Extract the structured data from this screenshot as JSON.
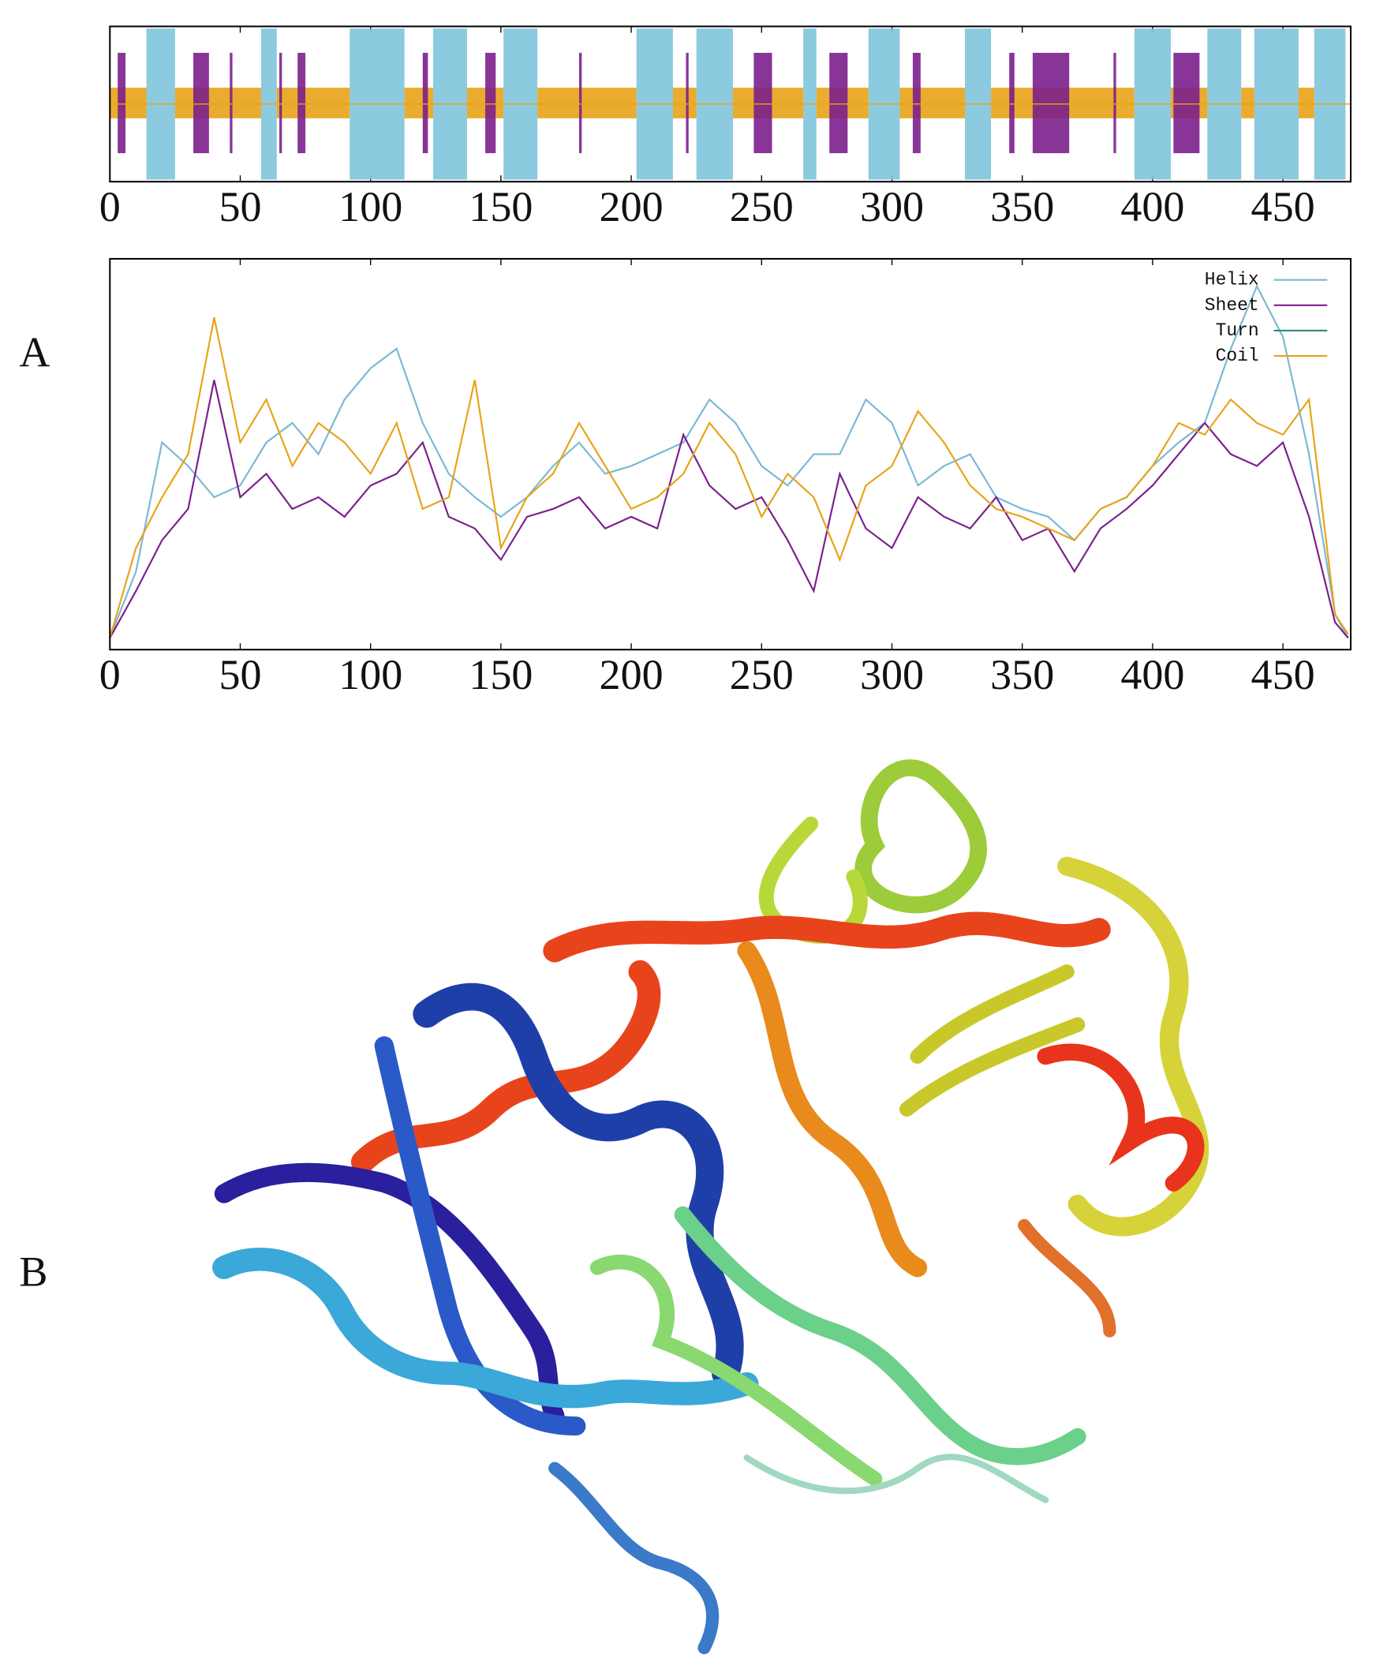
{
  "panel_labels": {
    "a": "A",
    "b": "B"
  },
  "chart_data": [
    {
      "type": "track",
      "xlim": [
        0,
        476
      ],
      "xticks": [
        0,
        50,
        100,
        150,
        200,
        250,
        300,
        350,
        400,
        450
      ],
      "series": [
        {
          "color": "#7ec4dc",
          "segments": [
            [
              14,
              25
            ],
            [
              58,
              64
            ],
            [
              92,
              113
            ],
            [
              124,
              137
            ],
            [
              151,
              164
            ],
            [
              202,
              216
            ],
            [
              225,
              239
            ],
            [
              266,
              271
            ],
            [
              291,
              303
            ],
            [
              328,
              338
            ],
            [
              393,
              407
            ],
            [
              421,
              434
            ],
            [
              439,
              456
            ],
            [
              462,
              474
            ]
          ]
        },
        {
          "color": "#e8a317",
          "segments": [
            [
              0,
              14
            ],
            [
              25,
              58
            ],
            [
              64,
              92
            ],
            [
              113,
              124
            ],
            [
              137,
              151
            ],
            [
              164,
              202
            ],
            [
              216,
              225
            ],
            [
              239,
              266
            ],
            [
              271,
              291
            ],
            [
              303,
              328
            ],
            [
              338,
              393
            ],
            [
              407,
              421
            ],
            [
              434,
              439
            ],
            [
              456,
              462
            ]
          ]
        },
        {
          "color": "#7b1f8c",
          "segments": [
            [
              3,
              6
            ],
            [
              32,
              38
            ],
            [
              46,
              47
            ],
            [
              65,
              66
            ],
            [
              72,
              75
            ],
            [
              120,
              122
            ],
            [
              144,
              148
            ],
            [
              180,
              181
            ],
            [
              221,
              222
            ],
            [
              247,
              254
            ],
            [
              276,
              283
            ],
            [
              308,
              311
            ],
            [
              345,
              347
            ],
            [
              354,
              368
            ],
            [
              385,
              386
            ],
            [
              408,
              418
            ]
          ]
        }
      ]
    },
    {
      "type": "line",
      "xlim": [
        0,
        476
      ],
      "ylim": [
        0,
        1
      ],
      "xticks": [
        0,
        50,
        100,
        150,
        200,
        250,
        300,
        350,
        400,
        450
      ],
      "legend": "top-right",
      "x": [
        0,
        10,
        20,
        30,
        40,
        50,
        60,
        70,
        80,
        90,
        100,
        110,
        120,
        130,
        140,
        150,
        160,
        170,
        180,
        190,
        200,
        210,
        220,
        230,
        240,
        250,
        260,
        270,
        280,
        290,
        300,
        310,
        320,
        330,
        340,
        350,
        360,
        370,
        380,
        390,
        400,
        410,
        420,
        430,
        440,
        450,
        460,
        470,
        475
      ],
      "series": [
        {
          "name": "Helix",
          "color": "#7ab8d4",
          "values": [
            0.03,
            0.2,
            0.53,
            0.47,
            0.39,
            0.42,
            0.53,
            0.58,
            0.5,
            0.64,
            0.72,
            0.77,
            0.58,
            0.45,
            0.39,
            0.34,
            0.39,
            0.47,
            0.53,
            0.45,
            0.47,
            0.5,
            0.53,
            0.64,
            0.58,
            0.47,
            0.42,
            0.5,
            0.5,
            0.64,
            0.58,
            0.42,
            0.47,
            0.5,
            0.39,
            0.36,
            0.34,
            0.28,
            0.36,
            0.39,
            0.47,
            0.53,
            0.58,
            0.77,
            0.93,
            0.8,
            0.5,
            0.09,
            0.03
          ]
        },
        {
          "name": "Sheet",
          "color": "#7b1f8c",
          "values": [
            0.03,
            0.15,
            0.28,
            0.36,
            0.69,
            0.39,
            0.45,
            0.36,
            0.39,
            0.34,
            0.42,
            0.45,
            0.53,
            0.34,
            0.31,
            0.23,
            0.34,
            0.36,
            0.39,
            0.31,
            0.34,
            0.31,
            0.55,
            0.42,
            0.36,
            0.39,
            0.28,
            0.15,
            0.45,
            0.31,
            0.26,
            0.39,
            0.34,
            0.31,
            0.39,
            0.28,
            0.31,
            0.2,
            0.31,
            0.36,
            0.42,
            0.5,
            0.58,
            0.5,
            0.47,
            0.53,
            0.34,
            0.07,
            0.03
          ]
        },
        {
          "name": "Turn",
          "color": "#2e8b7a",
          "values": [
            null,
            null,
            null,
            null,
            null,
            null,
            null,
            null,
            null,
            null,
            null,
            null,
            null,
            null,
            null,
            null,
            null,
            null,
            null,
            null,
            null,
            null,
            null,
            null,
            null,
            null,
            null,
            null,
            null,
            null,
            null,
            null,
            null,
            null,
            null,
            null,
            null,
            null,
            null,
            null,
            null,
            null,
            null,
            null,
            null,
            null,
            null,
            null,
            null
          ]
        },
        {
          "name": "Coil",
          "color": "#e8a317",
          "values": [
            0.03,
            0.26,
            0.39,
            0.5,
            0.85,
            0.53,
            0.64,
            0.47,
            0.58,
            0.53,
            0.45,
            0.58,
            0.36,
            0.39,
            0.69,
            0.26,
            0.39,
            0.45,
            0.58,
            0.47,
            0.36,
            0.39,
            0.45,
            0.58,
            0.5,
            0.34,
            0.45,
            0.39,
            0.23,
            0.42,
            0.47,
            0.61,
            0.53,
            0.42,
            0.36,
            0.34,
            0.31,
            0.28,
            0.36,
            0.39,
            0.47,
            0.58,
            0.55,
            0.64,
            0.58,
            0.55,
            0.64,
            0.09,
            0.04
          ]
        }
      ]
    }
  ]
}
